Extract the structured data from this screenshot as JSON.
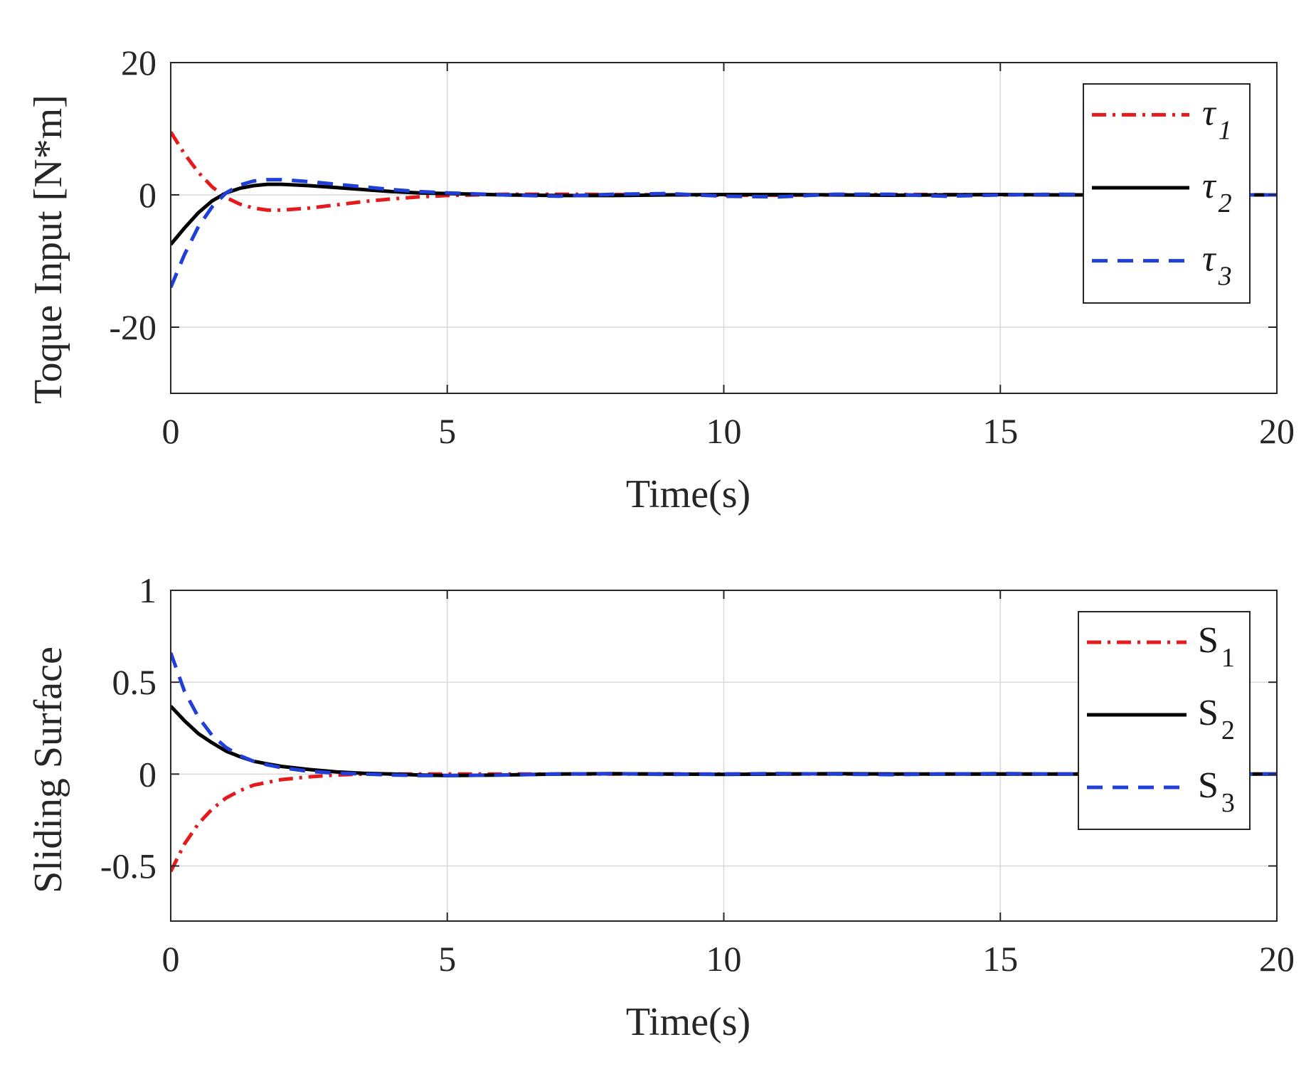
{
  "chart_data": [
    {
      "type": "line",
      "xlabel": "Time(s)",
      "ylabel": "Toque Input [N*m]",
      "xlim": [
        0,
        20
      ],
      "ylim": [
        -30,
        20
      ],
      "xticks": [
        0,
        5,
        10,
        15,
        20
      ],
      "yticks": [
        -20,
        0,
        20
      ],
      "xtick_labels": [
        "0",
        "5",
        "10",
        "15",
        "20"
      ],
      "ytick_labels": [
        "-20",
        "0",
        "20"
      ],
      "grid": true,
      "legend_position": "top-right",
      "x": [
        0,
        0.25,
        0.5,
        0.75,
        1,
        1.25,
        1.5,
        1.75,
        2,
        2.5,
        3,
        3.5,
        4,
        4.5,
        5,
        6,
        7,
        8,
        9,
        10,
        11,
        12,
        13,
        14,
        15,
        16,
        17,
        18,
        19,
        20
      ],
      "series": [
        {
          "name": "τ1",
          "symbol": "τ",
          "subscript": "1",
          "color": "#e41a1c",
          "style": "dashdot",
          "values": [
            9.5,
            6.2,
            3.4,
            1.2,
            -0.4,
            -1.4,
            -2.0,
            -2.3,
            -2.3,
            -2.0,
            -1.5,
            -1.0,
            -0.6,
            -0.3,
            -0.1,
            0.1,
            0.1,
            0.05,
            0,
            -0.05,
            -0.05,
            0,
            0.05,
            0.05,
            0,
            0,
            0,
            0,
            0,
            0
          ]
        },
        {
          "name": "τ2",
          "symbol": "τ",
          "subscript": "2",
          "color": "#000000",
          "style": "solid",
          "values": [
            -7.5,
            -5.0,
            -2.7,
            -0.9,
            0.3,
            1.0,
            1.4,
            1.6,
            1.6,
            1.4,
            1.1,
            0.8,
            0.5,
            0.3,
            0.2,
            0,
            -0.1,
            -0.1,
            0,
            0.05,
            0.05,
            0,
            -0.05,
            0,
            0.05,
            0,
            0,
            0,
            0,
            0
          ]
        },
        {
          "name": "τ3",
          "symbol": "τ",
          "subscript": "3",
          "color": "#1f3fd8",
          "style": "dashed",
          "values": [
            -14,
            -9.0,
            -4.8,
            -1.8,
            0.3,
            1.5,
            2.1,
            2.3,
            2.3,
            2.0,
            1.6,
            1.2,
            0.8,
            0.5,
            0.3,
            0,
            -0.2,
            0.1,
            0.2,
            -0.2,
            -0.3,
            0.1,
            0.1,
            -0.2,
            0,
            0.1,
            0,
            0,
            0,
            0
          ]
        }
      ]
    },
    {
      "type": "line",
      "xlabel": "Time(s)",
      "ylabel": "Sliding Surface",
      "xlim": [
        0,
        20
      ],
      "ylim": [
        -0.8,
        1
      ],
      "xticks": [
        0,
        5,
        10,
        15,
        20
      ],
      "yticks": [
        -0.5,
        0,
        0.5,
        1
      ],
      "xtick_labels": [
        "0",
        "5",
        "10",
        "15",
        "20"
      ],
      "ytick_labels": [
        "-0.5",
        "0",
        "0.5",
        "1"
      ],
      "grid": true,
      "legend_position": "top-right",
      "x": [
        0,
        0.25,
        0.5,
        0.75,
        1,
        1.25,
        1.5,
        1.75,
        2,
        2.5,
        3,
        3.5,
        4,
        4.5,
        5,
        6,
        7,
        8,
        9,
        10,
        11,
        12,
        13,
        14,
        15,
        16,
        17,
        18,
        19,
        20
      ],
      "series": [
        {
          "name": "S1",
          "symbol": "S",
          "subscript": "1",
          "color": "#e41a1c",
          "style": "dashdot",
          "values": [
            -0.53,
            -0.38,
            -0.27,
            -0.19,
            -0.13,
            -0.09,
            -0.06,
            -0.045,
            -0.03,
            -0.015,
            -0.005,
            0,
            0,
            0,
            0,
            0,
            0,
            0,
            0,
            0,
            0,
            0,
            0,
            0,
            0,
            0,
            0,
            0,
            0,
            0
          ]
        },
        {
          "name": "S2",
          "symbol": "S",
          "subscript": "2",
          "color": "#000000",
          "style": "solid",
          "values": [
            0.37,
            0.29,
            0.22,
            0.17,
            0.125,
            0.095,
            0.07,
            0.055,
            0.042,
            0.025,
            0.012,
            0.004,
            0,
            -0.005,
            -0.008,
            -0.005,
            0,
            0.002,
            0,
            -0.002,
            0,
            0.002,
            0,
            0,
            0,
            0,
            0,
            0,
            0,
            0
          ]
        },
        {
          "name": "S3",
          "symbol": "S",
          "subscript": "3",
          "color": "#1f3fd8",
          "style": "dashed",
          "values": [
            0.66,
            0.45,
            0.31,
            0.21,
            0.145,
            0.1,
            0.07,
            0.05,
            0.035,
            0.015,
            0.005,
            0,
            -0.005,
            -0.008,
            -0.008,
            -0.005,
            0,
            0.002,
            -0.002,
            0,
            0.003,
            0,
            -0.003,
            0,
            0.003,
            0,
            0,
            0,
            0,
            0
          ]
        }
      ]
    }
  ]
}
